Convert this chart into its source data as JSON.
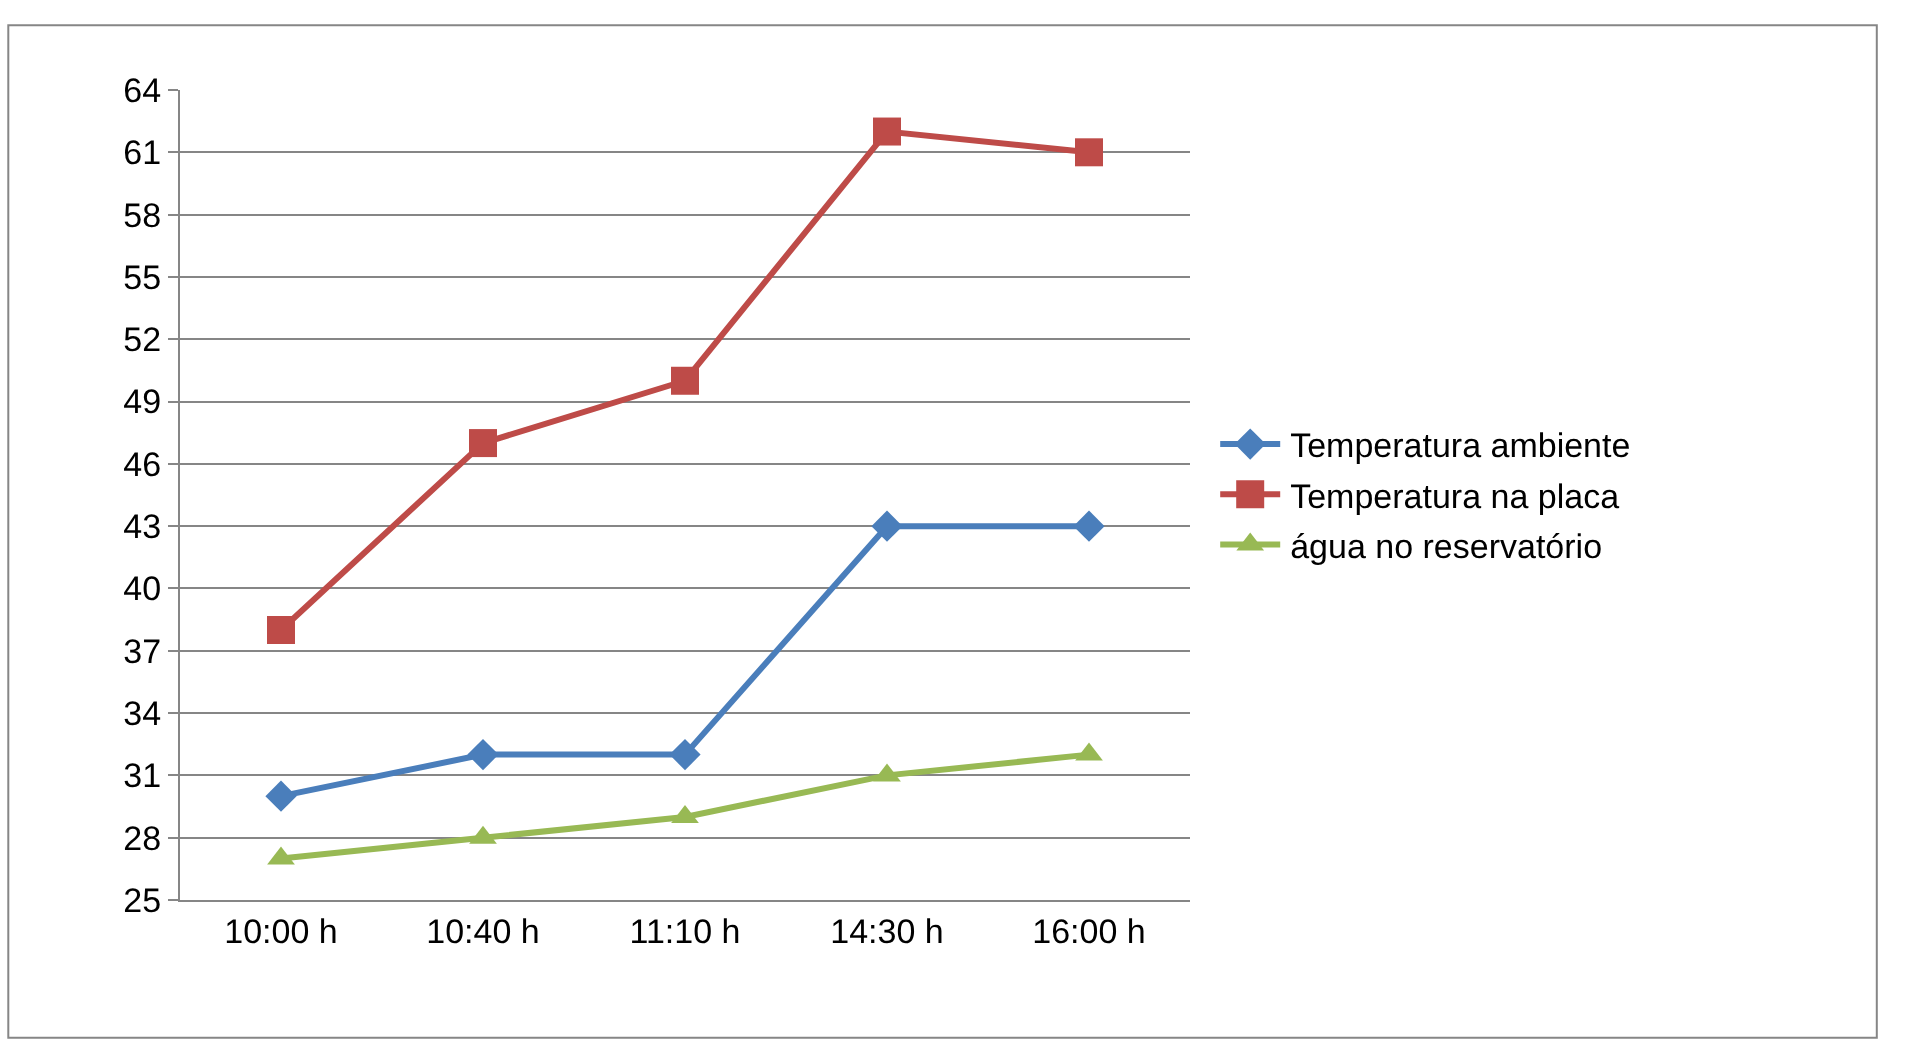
{
  "chart_data": {
    "type": "line",
    "categories": [
      "10:00 h",
      "10:40 h",
      "11:10 h",
      "14:30 h",
      "16:00 h"
    ],
    "series": [
      {
        "name": "Temperatura ambiente",
        "color": "#4a7ebb",
        "marker": "diamond",
        "values": [
          30,
          32,
          32,
          43,
          43
        ]
      },
      {
        "name": "Temperatura na placa",
        "color": "#be4b48",
        "marker": "square",
        "values": [
          38,
          47,
          50,
          62,
          61
        ]
      },
      {
        "name": "água no reservatório",
        "color": "#98b954",
        "marker": "triangle",
        "values": [
          27,
          28,
          29,
          31,
          32
        ]
      }
    ],
    "ylim": [
      25,
      64
    ],
    "yticks": [
      25,
      28,
      31,
      34,
      37,
      40,
      43,
      46,
      49,
      52,
      55,
      58,
      61,
      64
    ],
    "grid": "y",
    "legend": "right",
    "line_style": "solid"
  }
}
